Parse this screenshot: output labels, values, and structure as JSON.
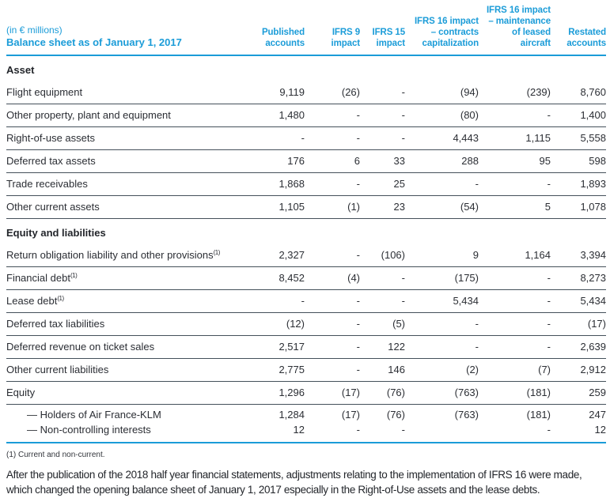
{
  "table": {
    "unit_label": "(in € millions)",
    "title": "Balance sheet as of January 1, 2017",
    "columns": [
      "Published accounts",
      "IFRS 9 impact",
      "IFRS 15 impact",
      "IFRS 16 impact – contracts capitalization",
      "IFRS 16 impact – maintenance of leased aircraft",
      "Restated accounts"
    ],
    "sections": [
      {
        "header": "Asset",
        "rows": [
          {
            "label": "Flight equipment",
            "sup": "",
            "values": [
              "9,119",
              "(26)",
              "-",
              "(94)",
              "(239)",
              "8,760"
            ]
          },
          {
            "label": "Other property, plant and equipment",
            "sup": "",
            "values": [
              "1,480",
              "-",
              "-",
              "(80)",
              "-",
              "1,400"
            ]
          },
          {
            "label": "Right-of-use assets",
            "sup": "",
            "values": [
              "-",
              "-",
              "-",
              "4,443",
              "1,115",
              "5,558"
            ]
          },
          {
            "label": "Deferred tax assets",
            "sup": "",
            "values": [
              "176",
              "6",
              "33",
              "288",
              "95",
              "598"
            ]
          },
          {
            "label": "Trade receivables",
            "sup": "",
            "values": [
              "1,868",
              "-",
              "25",
              "-",
              "-",
              "1,893"
            ]
          },
          {
            "label": "Other current assets",
            "sup": "",
            "values": [
              "1,105",
              "(1)",
              "23",
              "(54)",
              "5",
              "1,078"
            ]
          }
        ]
      },
      {
        "header": "Equity and liabilities",
        "rows": [
          {
            "label": "Return obligation liability and other provisions",
            "sup": "(1)",
            "values": [
              "2,327",
              "-",
              "(106)",
              "9",
              "1,164",
              "3,394"
            ]
          },
          {
            "label": "Financial debt",
            "sup": "(1)",
            "values": [
              "8,452",
              "(4)",
              "-",
              "(175)",
              "-",
              "8,273"
            ]
          },
          {
            "label": "Lease debt",
            "sup": "(1)",
            "values": [
              "-",
              "-",
              "-",
              "5,434",
              "-",
              "5,434"
            ]
          },
          {
            "label": "Deferred tax liabilities",
            "sup": "",
            "values": [
              "(12)",
              "-",
              "(5)",
              "-",
              "-",
              "(17)"
            ]
          },
          {
            "label": "Deferred revenue on ticket sales",
            "sup": "",
            "values": [
              "2,517",
              "-",
              "122",
              "-",
              "-",
              "2,639"
            ]
          },
          {
            "label": "Other current liabilities",
            "sup": "",
            "values": [
              "2,775",
              "-",
              "146",
              "(2)",
              "(7)",
              "2,912"
            ]
          },
          {
            "label": "Equity",
            "sup": "",
            "values": [
              "1,296",
              "(17)",
              "(76)",
              "(763)",
              "(181)",
              "259"
            ]
          }
        ],
        "subrows": [
          {
            "label": "— Holders of Air France-KLM",
            "values": [
              "1,284",
              "(17)",
              "(76)",
              "(763)",
              "(181)",
              "247"
            ]
          },
          {
            "label": "— Non-controlling interests",
            "values": [
              "12",
              "-",
              "-",
              "",
              "-",
              "12"
            ]
          }
        ]
      }
    ]
  },
  "footnote": "(1)  Current and non-current.",
  "closing_paragraph": "After the publication of the 2018 half year financial statements, adjustments relating to the implementation of IFRS 16 were made, which changed the opening balance sheet of January 1, 2017 especially in the Right-of-Use assets and the lease debts.",
  "colors": {
    "accent_blue": "#1b9cd8",
    "rule_dark": "#44505a",
    "text_dark": "#2b2e34"
  }
}
